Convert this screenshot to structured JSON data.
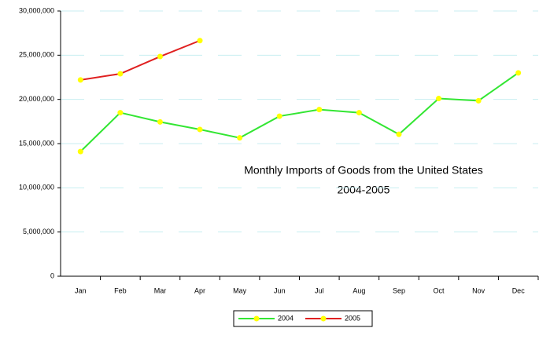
{
  "chart_data": {
    "type": "line",
    "title": "Monthly Imports of Goods from the United States",
    "subtitle": "2004-2005",
    "categories": [
      "Jan",
      "Feb",
      "Mar",
      "Apr",
      "May",
      "Jun",
      "Jul",
      "Aug",
      "Sep",
      "Oct",
      "Nov",
      "Dec"
    ],
    "series": [
      {
        "name": "2004",
        "color": "#33e633",
        "marker_color": "#ffff00",
        "values": [
          14100000,
          18500000,
          17450000,
          16600000,
          15650000,
          18100000,
          18850000,
          18500000,
          16050000,
          20100000,
          19850000,
          23000000
        ]
      },
      {
        "name": "2005",
        "color": "#e02020",
        "marker_color": "#ffff00",
        "values": [
          22200000,
          22900000,
          24850000,
          26650000,
          null,
          null,
          null,
          null,
          null,
          null,
          null,
          null
        ]
      }
    ],
    "ylim": [
      0,
      30000000
    ],
    "yticks": [
      {
        "value": 0,
        "label": "0"
      },
      {
        "value": 5000000,
        "label": "5,000,000"
      },
      {
        "value": 10000000,
        "label": "10,000,000"
      },
      {
        "value": 15000000,
        "label": "15,000,000"
      },
      {
        "value": 20000000,
        "label": "20,000,000"
      },
      {
        "value": 25000000,
        "label": "25,000,000"
      },
      {
        "value": 30000000,
        "label": "30,000,000"
      }
    ],
    "grid": true,
    "legend": "bottom"
  }
}
